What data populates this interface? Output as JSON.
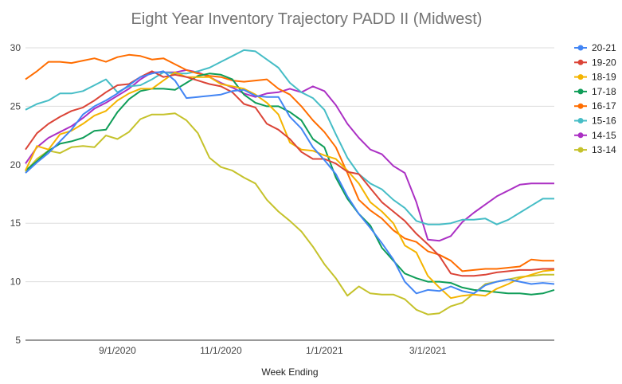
{
  "chart_data": {
    "type": "line",
    "title": "Eight Year Inventory Trajectory PADD II (Midwest)",
    "xlabel": "Week Ending",
    "ylabel": "",
    "ylim": [
      5,
      30
    ],
    "yticks": [
      5,
      10,
      15,
      20,
      25,
      30
    ],
    "x": [
      0,
      1,
      2,
      3,
      4,
      5,
      6,
      7,
      8,
      9,
      10,
      11,
      12,
      13,
      14,
      15,
      16,
      17,
      18,
      19,
      20,
      21,
      22,
      23,
      24,
      25,
      26,
      27,
      28,
      29,
      30,
      31,
      32,
      33,
      34,
      35,
      36,
      37,
      38,
      39,
      40,
      41,
      42,
      43,
      44,
      45,
      46
    ],
    "x_tick_labels": [
      {
        "index": 8,
        "label": "9/1/2020"
      },
      {
        "index": 17,
        "label": "11/1/2020"
      },
      {
        "index": 26,
        "label": "1/1/2021"
      },
      {
        "index": 35,
        "label": "3/1/2021"
      }
    ],
    "grid": true,
    "legend_position": "right",
    "series": [
      {
        "name": "20-21",
        "color": "#4285f4",
        "values": [
          19.3,
          20.2,
          21.0,
          22.0,
          23.0,
          24.3,
          25.0,
          25.5,
          26.1,
          26.8,
          27.5,
          27.8,
          28.0,
          27.2,
          25.7,
          25.8,
          25.9,
          26.0,
          26.3,
          26.4,
          25.9,
          25.8,
          25.8,
          24.1,
          23.1,
          21.5,
          20.4,
          19.2,
          17.3,
          15.8,
          14.6,
          13.3,
          11.9,
          10.0,
          9.0,
          9.3,
          9.2,
          9.6,
          9.2,
          9.0,
          9.7,
          10.0,
          10.2,
          10.0,
          9.8,
          9.9,
          9.8
        ]
      },
      {
        "name": "19-20",
        "color": "#db4437",
        "values": [
          21.3,
          22.7,
          23.5,
          24.1,
          24.6,
          24.9,
          25.5,
          26.2,
          26.8,
          26.9,
          27.5,
          28.0,
          27.5,
          27.7,
          27.5,
          27.2,
          26.9,
          26.7,
          26.2,
          25.2,
          24.9,
          23.5,
          23.0,
          22.2,
          21.1,
          20.5,
          20.5,
          20.1,
          19.4,
          19.2,
          18.0,
          16.8,
          16.0,
          15.2,
          14.1,
          13.2,
          12.2,
          10.7,
          10.5,
          10.5,
          10.6,
          10.8,
          10.9,
          11.0,
          11.0,
          11.1,
          11.1
        ]
      },
      {
        "name": "18-19",
        "color": "#f4b400",
        "values": [
          19.5,
          21.6,
          21.3,
          22.6,
          22.9,
          23.5,
          24.2,
          24.6,
          25.5,
          26.1,
          26.5,
          26.5,
          27.2,
          27.9,
          27.5,
          27.5,
          27.5,
          26.9,
          26.7,
          26.5,
          26.0,
          25.3,
          24.3,
          21.9,
          21.3,
          21.2,
          20.8,
          20.5,
          19.5,
          18.4,
          16.8,
          16.0,
          15.0,
          13.1,
          12.5,
          10.5,
          9.5,
          8.6,
          8.8,
          8.9,
          8.8,
          9.4,
          9.8,
          10.3,
          10.6,
          10.9,
          11.0
        ]
      },
      {
        "name": "17-18",
        "color": "#0f9d58",
        "values": [
          19.5,
          20.3,
          21.2,
          21.8,
          22.0,
          22.3,
          22.9,
          23.0,
          24.5,
          25.6,
          26.3,
          26.5,
          26.5,
          26.4,
          27.0,
          27.6,
          27.8,
          27.7,
          27.3,
          26.0,
          25.3,
          25.0,
          25.0,
          24.5,
          23.8,
          22.2,
          21.5,
          18.9,
          17.1,
          15.8,
          14.8,
          12.9,
          11.8,
          10.7,
          10.3,
          10.0,
          10.0,
          9.9,
          9.5,
          9.3,
          9.2,
          9.1,
          9.0,
          9.0,
          8.9,
          9.0,
          9.3
        ]
      },
      {
        "name": "16-17",
        "color": "#ff6d00",
        "values": [
          27.3,
          28.0,
          28.8,
          28.8,
          28.7,
          28.9,
          29.1,
          28.8,
          29.2,
          29.4,
          29.3,
          29.0,
          29.1,
          28.6,
          28.1,
          27.8,
          27.6,
          27.5,
          27.2,
          27.1,
          27.2,
          27.3,
          26.5,
          26.0,
          25.0,
          23.8,
          22.8,
          21.5,
          19.3,
          17.0,
          16.1,
          15.4,
          14.4,
          13.7,
          13.4,
          12.6,
          12.3,
          11.8,
          10.9,
          11.0,
          11.1,
          11.1,
          11.2,
          11.3,
          11.9,
          11.8,
          11.8
        ]
      },
      {
        "name": "15-16",
        "color": "#46bdc6",
        "values": [
          24.7,
          25.2,
          25.5,
          26.1,
          26.1,
          26.3,
          26.8,
          27.3,
          26.2,
          26.7,
          26.8,
          27.3,
          27.9,
          27.8,
          27.8,
          28.0,
          28.3,
          28.8,
          29.3,
          29.8,
          29.7,
          29.0,
          28.3,
          27.0,
          26.2,
          25.7,
          24.7,
          22.6,
          20.6,
          19.2,
          18.4,
          17.9,
          17.0,
          16.3,
          15.2,
          14.9,
          14.9,
          15.0,
          15.3,
          15.3,
          15.4,
          14.9,
          15.3,
          15.9,
          16.5,
          17.1,
          17.1
        ]
      },
      {
        "name": "14-15",
        "color": "#ab30c4",
        "values": [
          20.1,
          21.5,
          22.3,
          22.8,
          23.3,
          24.0,
          24.8,
          25.3,
          25.9,
          26.5,
          27.3,
          27.9,
          27.9,
          27.9,
          28.1,
          27.9,
          27.5,
          27.0,
          26.6,
          26.1,
          25.8,
          26.1,
          26.2,
          26.5,
          26.2,
          26.7,
          26.3,
          25.1,
          23.5,
          22.3,
          21.3,
          20.9,
          19.9,
          19.3,
          16.8,
          13.6,
          13.5,
          13.9,
          15.1,
          15.9,
          16.6,
          17.3,
          17.8,
          18.3,
          18.4,
          18.4,
          18.4
        ]
      },
      {
        "name": "13-14",
        "color": "#c5c22b",
        "values": [
          19.4,
          20.5,
          21.2,
          21.0,
          21.5,
          21.6,
          21.5,
          22.5,
          22.2,
          22.8,
          23.9,
          24.3,
          24.3,
          24.4,
          23.8,
          22.7,
          20.6,
          19.8,
          19.5,
          18.9,
          18.4,
          17.0,
          16.0,
          15.2,
          14.3,
          13.0,
          11.5,
          10.3,
          8.8,
          9.6,
          9.0,
          8.9,
          8.9,
          8.5,
          7.6,
          7.2,
          7.3,
          7.9,
          8.2,
          9.0,
          9.8,
          10.0,
          10.2,
          10.4,
          10.5,
          10.6,
          10.6
        ]
      }
    ]
  }
}
